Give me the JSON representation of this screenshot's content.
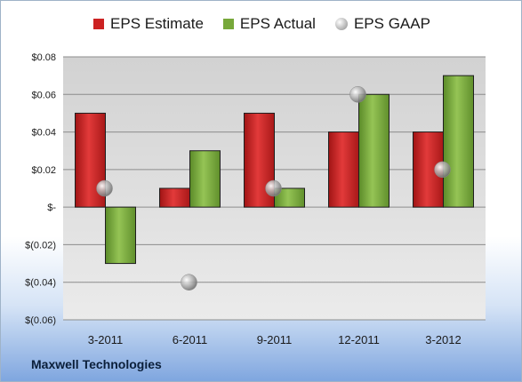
{
  "chart_data": {
    "type": "bar",
    "categories": [
      "3-2011",
      "6-2011",
      "9-2011",
      "12-2011",
      "3-2012"
    ],
    "series": [
      {
        "name": "EPS Estimate",
        "kind": "bar",
        "color": "#cc2222",
        "values": [
          0.05,
          0.01,
          0.05,
          0.04,
          0.04
        ]
      },
      {
        "name": "EPS Actual",
        "kind": "bar",
        "color": "#77a83a",
        "values": [
          -0.03,
          0.03,
          0.01,
          0.06,
          0.07
        ]
      },
      {
        "name": "EPS GAAP",
        "kind": "bubble",
        "color": "#b8b8b8",
        "values": [
          0.01,
          -0.04,
          0.01,
          0.06,
          0.02
        ]
      }
    ],
    "ylim": [
      -0.06,
      0.08
    ],
    "yticks": [
      0.08,
      0.06,
      0.04,
      0.02,
      0,
      -0.02,
      -0.04,
      -0.06
    ],
    "ytick_labels": [
      "$0.08",
      "$0.06",
      "$0.04",
      "$0.02",
      "$-",
      "$(0.02)",
      "$(0.04)",
      "$(0.06)"
    ],
    "grid": true,
    "legend_position": "top"
  },
  "footer": {
    "company": "Maxwell Technologies"
  }
}
